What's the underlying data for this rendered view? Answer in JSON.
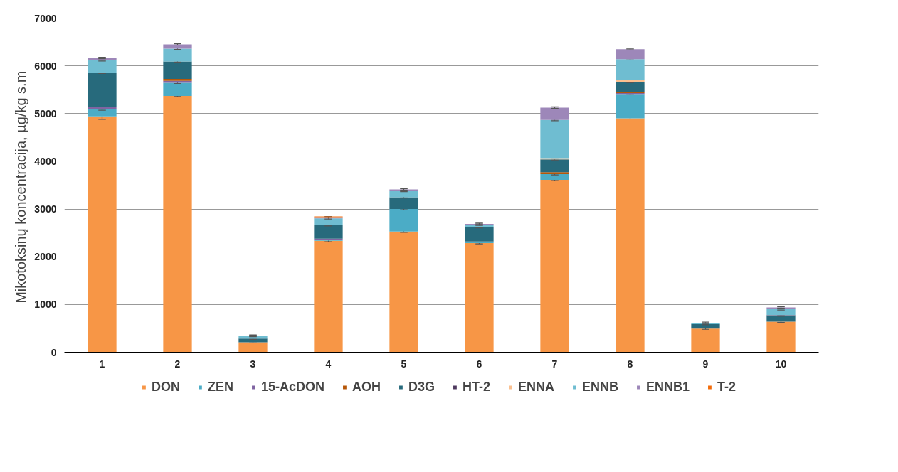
{
  "chart_data": {
    "type": "bar",
    "stacked": true,
    "ylabel": "Mikotoksinų koncentracija,  µg/kg s.m",
    "categories": [
      "1",
      "2",
      "3",
      "4",
      "5",
      "6",
      "7",
      "8",
      "9",
      "10"
    ],
    "ylim": [
      0,
      7000
    ],
    "yticks": [
      0,
      1000,
      2000,
      3000,
      4000,
      5000,
      6000,
      7000
    ],
    "grid": "y",
    "legend": "bottom",
    "series": [
      {
        "name": "DON",
        "color": "#f79646",
        "values": [
          4940,
          5370,
          210,
          2335,
          2530,
          2285,
          3610,
          4900,
          495,
          640
        ],
        "errors": [
          60,
          15,
          15,
          20,
          20,
          15,
          15,
          15,
          15,
          15
        ]
      },
      {
        "name": "ZEN",
        "color": "#4bacc6",
        "values": [
          145,
          275,
          0,
          25,
          470,
          35,
          120,
          510,
          0,
          0
        ],
        "errors": [
          15,
          15,
          null,
          null,
          15,
          null,
          15,
          15,
          null,
          null
        ]
      },
      {
        "name": "15-AcDON",
        "color": "#8064a2",
        "values": [
          55,
          40,
          0,
          20,
          0,
          0,
          0,
          20,
          0,
          0
        ]
      },
      {
        "name": "AOH",
        "color": "#b65708",
        "values": [
          0,
          40,
          0,
          0,
          0,
          0,
          40,
          20,
          0,
          0
        ]
      },
      {
        "name": "D3G",
        "color": "#276a7c",
        "values": [
          715,
          365,
          75,
          280,
          245,
          300,
          270,
          210,
          95,
          130
        ],
        "errors": [
          15,
          15,
          15,
          15,
          15,
          15,
          15,
          15,
          15,
          15
        ]
      },
      {
        "name": "HT-2",
        "color": "#4f3a5f",
        "values": [
          0,
          0,
          0,
          10,
          0,
          0,
          0,
          0,
          0,
          10
        ]
      },
      {
        "name": "ENNA",
        "color": "#fac090",
        "values": [
          0,
          null,
          0,
          0,
          0,
          0,
          25,
          40,
          0,
          0
        ]
      },
      {
        "name": "ENNB",
        "color": "#6fbdd1",
        "values": [
          260,
          270,
          55,
          135,
          135,
          50,
          800,
          440,
          25,
          120
        ],
        "errors": [
          15,
          15,
          15,
          15,
          15,
          15,
          15,
          15,
          15,
          15
        ]
      },
      {
        "name": "ENNB1",
        "color": "#9d87b9",
        "values": [
          50,
          90,
          10,
          25,
          30,
          20,
          260,
          210,
          null,
          40
        ],
        "errors": [
          15,
          15,
          15,
          15,
          15,
          15,
          15,
          15,
          null,
          15
        ]
      },
      {
        "name": "T-2",
        "color": "#f46c0a",
        "values": [
          0,
          0,
          0,
          15,
          0,
          0,
          0,
          0,
          0,
          null
        ]
      }
    ]
  }
}
